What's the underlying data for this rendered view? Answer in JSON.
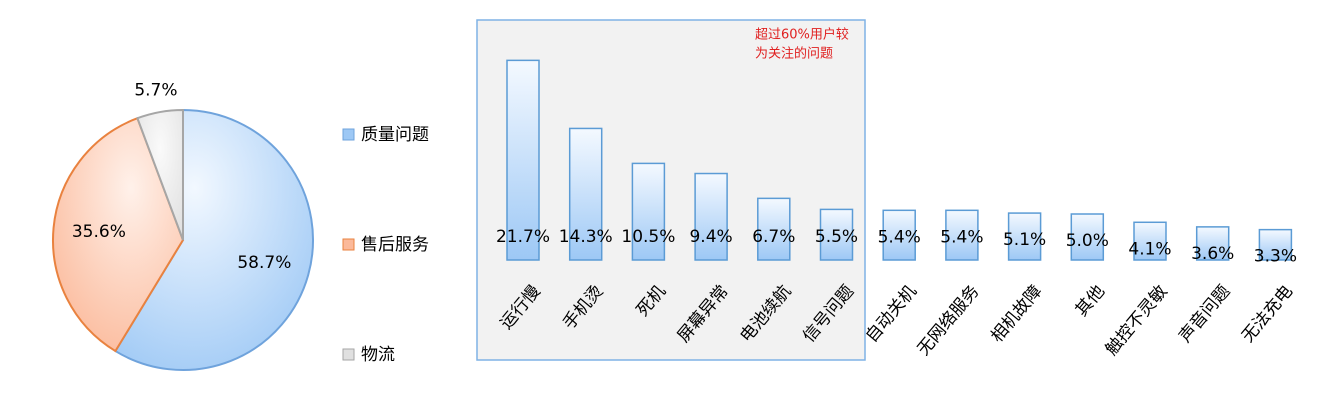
{
  "chart_data": [
    {
      "type": "pie",
      "categories": [
        "质量问题",
        "售后服务",
        "物流"
      ],
      "values": [
        58.7,
        35.6,
        5.7
      ],
      "value_labels": [
        "58.7%",
        "35.6%",
        "5.7%"
      ],
      "colors": [
        "#9dc8f5",
        "#fbb99a",
        "#e0e0e0"
      ],
      "stroke_colors": [
        "#6fa3dc",
        "#e9823f",
        "#a6a6a6"
      ]
    },
    {
      "type": "bar",
      "categories": [
        "运行慢",
        "手机烫",
        "死机",
        "屏幕异常",
        "电池续航",
        "信号问题",
        "自动关机",
        "无网络服务",
        "相机故障",
        "其他",
        "触控不灵敏",
        "声音问题",
        "无法充电"
      ],
      "values": [
        21.7,
        14.3,
        10.5,
        9.4,
        6.7,
        5.5,
        5.4,
        5.4,
        5.1,
        5.0,
        4.1,
        3.6,
        3.3
      ],
      "value_labels": [
        "21.7%",
        "14.3%",
        "10.5%",
        "9.4%",
        "6.7%",
        "5.5%",
        "5.4%",
        "5.4%",
        "5.1%",
        "5.0%",
        "4.1%",
        "3.6%",
        "3.3%"
      ],
      "color": "#9dc8f5",
      "annotation": [
        "超过60%用户较",
        "为关注的问题"
      ]
    }
  ]
}
